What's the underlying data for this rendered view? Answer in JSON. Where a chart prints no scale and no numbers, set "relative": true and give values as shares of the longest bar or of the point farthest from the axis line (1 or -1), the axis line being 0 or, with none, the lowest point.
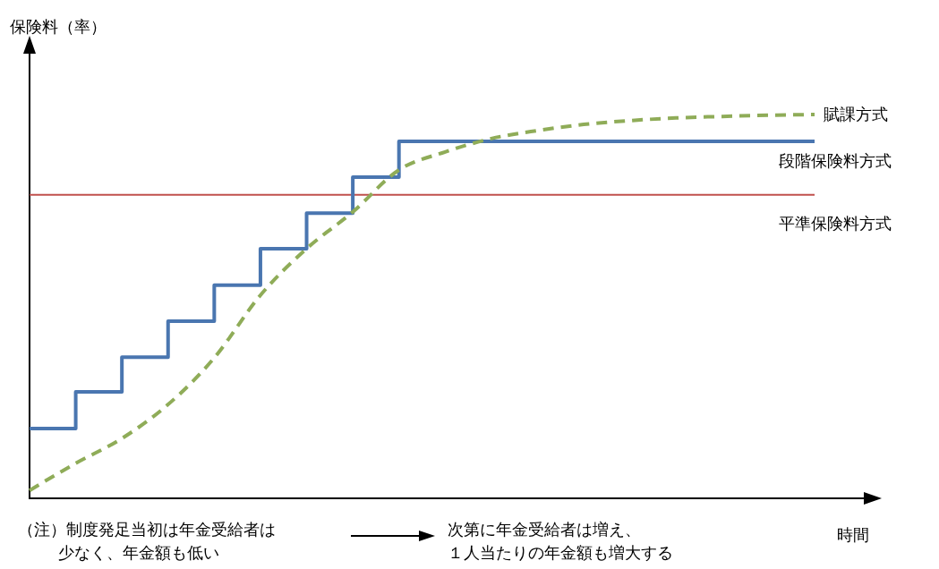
{
  "chart_data": {
    "type": "line",
    "relative": true,
    "ylabel": "保険料（率）",
    "xlabel": "時間",
    "categories": [
      null,
      null,
      null,
      null,
      null,
      null,
      null,
      null,
      null,
      null,
      null,
      null,
      null,
      null,
      null,
      null,
      null,
      null
    ],
    "series": [
      {
        "name": "賦課方式",
        "type": "line",
        "line_style": "dashed",
        "color": "#8fac58",
        "values": [
          0.016,
          0.087,
          0.152,
          0.241,
          0.363,
          0.527,
          0.649,
          0.745,
          0.855,
          0.902,
          0.937,
          0.958,
          0.974,
          0.984,
          0.991,
          0.995,
          0.998,
          1
        ]
      },
      {
        "name": "段階保険料方式",
        "type": "step",
        "line_style": "solid",
        "color": "#4a76b0",
        "values": [
          0.178,
          0.274,
          0.365,
          0.459,
          0.553,
          0.649,
          0.742,
          0.836,
          0.93,
          0.93,
          0.93,
          0.93,
          0.93,
          0.93,
          0.93,
          0.93,
          0.93,
          0.93
        ]
      },
      {
        "name": "平準保険料方式",
        "type": "line",
        "line_style": "solid",
        "color": "#c0504d",
        "values": [
          0.79,
          0.79,
          0.79,
          0.79,
          0.79,
          0.79,
          0.79,
          0.79,
          0.79,
          0.79,
          0.79,
          0.79,
          0.79,
          0.79,
          0.79,
          0.79,
          0.79,
          0.79
        ]
      }
    ],
    "annotations": [
      "（注）制度発足当初は年金受給者は少なく、年金額も低い",
      "次第に年金受給者は増え、１人当たりの年金額も増大する"
    ]
  }
}
